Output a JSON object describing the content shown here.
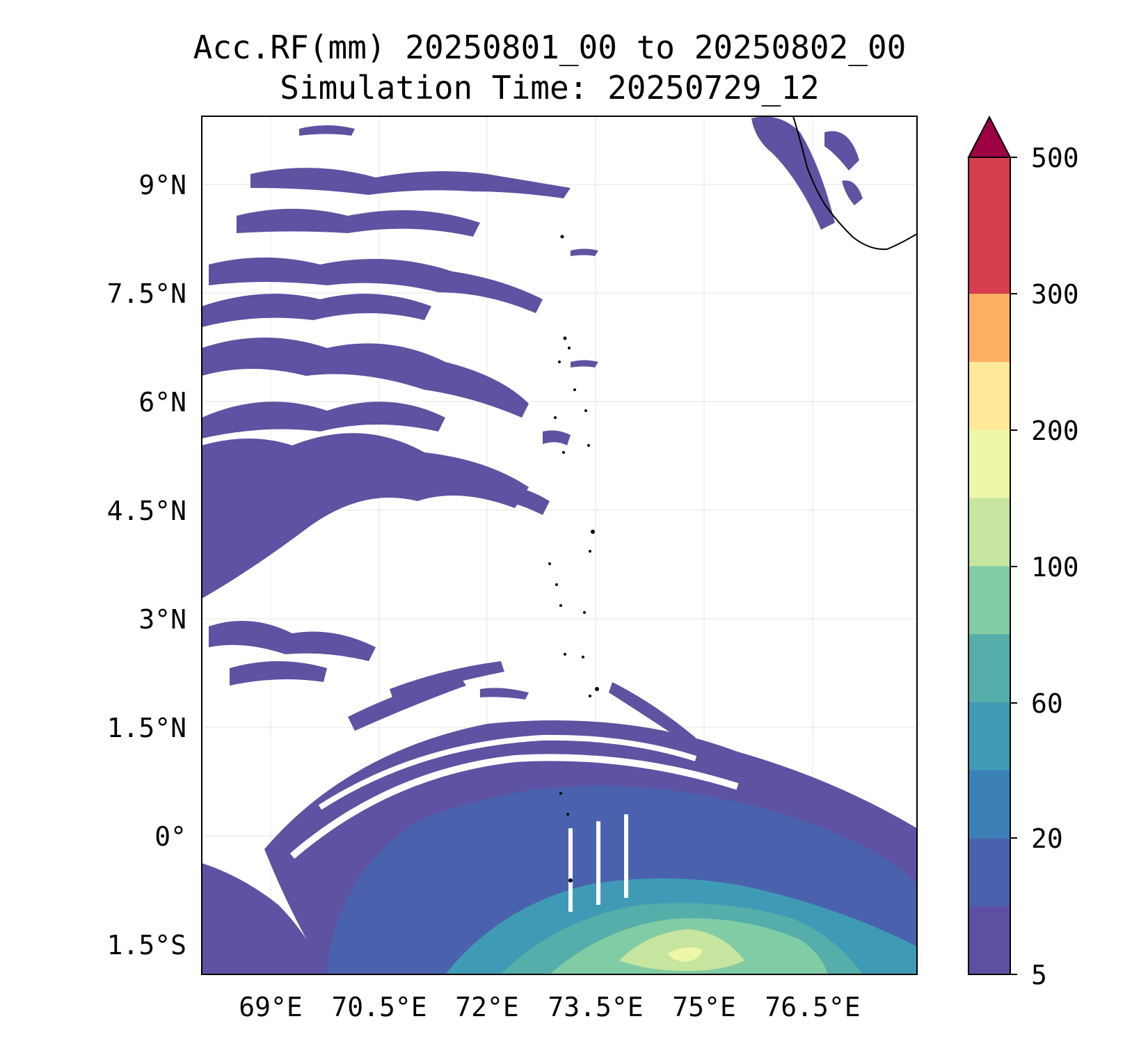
{
  "title": {
    "line1": "Acc.RF(mm) 20250801_00 to 20250802_00",
    "line2": "Simulation Time: 20250729_12"
  },
  "map": {
    "lat_ticks": [
      {
        "value": 9,
        "label": "9°N"
      },
      {
        "value": 7.5,
        "label": "7.5°N"
      },
      {
        "value": 6,
        "label": "6°N"
      },
      {
        "value": 4.5,
        "label": "4.5°N"
      },
      {
        "value": 3,
        "label": "3°N"
      },
      {
        "value": 1.5,
        "label": "1.5°N"
      },
      {
        "value": 0,
        "label": "0°"
      },
      {
        "value": -1.5,
        "label": "1.5°S"
      }
    ],
    "lon_ticks": [
      {
        "value": 69,
        "label": "69°E"
      },
      {
        "value": 70.5,
        "label": "70.5°E"
      },
      {
        "value": 72,
        "label": "72°E"
      },
      {
        "value": 73.5,
        "label": "73.5°E"
      },
      {
        "value": 75,
        "label": "75°E"
      },
      {
        "value": 76.5,
        "label": "76.5°E"
      }
    ],
    "lon_range": [
      68,
      78
    ],
    "lat_range": [
      -1.9,
      9.9
    ],
    "grid": true,
    "colors": {
      "coastline": "#000000",
      "light_rain": "#5e52a2",
      "moderate_rain": "#4a62ad",
      "heavy_rain": "#3f9bb5",
      "very_heavy_rain": "#82cca5",
      "extreme_rain": "#c6e59f"
    }
  },
  "colorbar": {
    "ticks": [
      {
        "value": 500,
        "label": "500"
      },
      {
        "value": 300,
        "label": "300"
      },
      {
        "value": 200,
        "label": "200"
      },
      {
        "value": 100,
        "label": "100"
      },
      {
        "value": 60,
        "label": "60"
      },
      {
        "value": 20,
        "label": "20"
      },
      {
        "value": 5,
        "label": "5"
      }
    ],
    "bands": [
      {
        "from": 5,
        "color": "#5e4fa2"
      },
      {
        "from": 10,
        "color": "#4a62ad"
      },
      {
        "from": 20,
        "color": "#3b81b8"
      },
      {
        "from": 40,
        "color": "#3f9bb5"
      },
      {
        "from": 60,
        "color": "#55aeaa"
      },
      {
        "from": 80,
        "color": "#82cca5"
      },
      {
        "from": 100,
        "color": "#c6e59f"
      },
      {
        "from": 150,
        "color": "#eef6a8"
      },
      {
        "from": 200,
        "color": "#fee89a"
      },
      {
        "from": 250,
        "color": "#fdb063"
      },
      {
        "from": 300,
        "color": "#d63e4f"
      },
      {
        "from": 400,
        "color": "#d63e4f"
      }
    ],
    "extend_max_color": "#9e0142"
  }
}
